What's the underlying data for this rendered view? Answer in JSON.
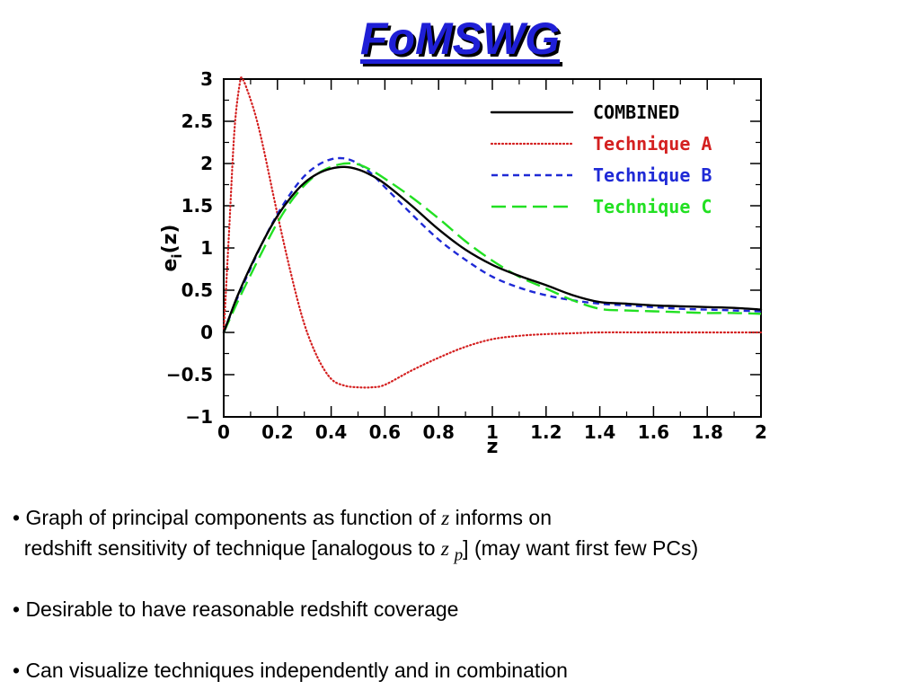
{
  "title": "FoMSWG",
  "chart_data": {
    "type": "line",
    "xlabel": "z",
    "ylabel": "e",
    "ylabel_sub": "i",
    "ylabel_suffix": "(z)",
    "xlim": [
      0,
      2
    ],
    "ylim": [
      -1,
      3
    ],
    "xticks": [
      "0",
      "0.2",
      "0.4",
      "0.6",
      "0.8",
      "1",
      "1.2",
      "1.4",
      "1.6",
      "1.8",
      "2"
    ],
    "yticks": [
      "3",
      "2.5",
      "2",
      "1.5",
      "1",
      "0.5",
      "0",
      "−0.5",
      "−1"
    ],
    "legend_position": "top-right",
    "grid": false,
    "series": [
      {
        "name": "COMBINED",
        "color": "#000000",
        "dash": "solid",
        "x": [
          0,
          0.05,
          0.1,
          0.15,
          0.2,
          0.25,
          0.3,
          0.35,
          0.4,
          0.45,
          0.5,
          0.55,
          0.6,
          0.7,
          0.8,
          0.9,
          1.0,
          1.1,
          1.2,
          1.3,
          1.4,
          1.5,
          1.6,
          1.7,
          1.8,
          1.9,
          2.0
        ],
        "y": [
          0.0,
          0.42,
          0.78,
          1.1,
          1.38,
          1.6,
          1.77,
          1.88,
          1.94,
          1.96,
          1.93,
          1.86,
          1.76,
          1.5,
          1.22,
          0.98,
          0.8,
          0.67,
          0.56,
          0.44,
          0.36,
          0.34,
          0.32,
          0.31,
          0.3,
          0.29,
          0.27
        ]
      },
      {
        "name": "Technique A",
        "color": "#d42020",
        "dash": "dotted",
        "x": [
          0,
          0.02,
          0.04,
          0.06,
          0.07,
          0.09,
          0.12,
          0.15,
          0.2,
          0.25,
          0.3,
          0.35,
          0.4,
          0.45,
          0.5,
          0.55,
          0.6,
          0.7,
          0.8,
          0.9,
          1.0,
          1.1,
          1.2,
          1.3,
          1.4,
          1.6,
          1.8,
          2.0
        ],
        "y": [
          0.0,
          1.2,
          2.4,
          2.95,
          3.0,
          2.85,
          2.55,
          2.15,
          1.4,
          0.7,
          0.1,
          -0.3,
          -0.55,
          -0.63,
          -0.65,
          -0.65,
          -0.62,
          -0.45,
          -0.3,
          -0.17,
          -0.08,
          -0.04,
          -0.02,
          -0.01,
          0.0,
          0.0,
          0.0,
          0.0
        ]
      },
      {
        "name": "Technique B",
        "color": "#1f2ad6",
        "dash": "short-dash",
        "x": [
          0,
          0.05,
          0.1,
          0.15,
          0.2,
          0.25,
          0.3,
          0.35,
          0.4,
          0.45,
          0.5,
          0.55,
          0.6,
          0.7,
          0.8,
          0.9,
          1.0,
          1.1,
          1.2,
          1.3,
          1.4,
          1.5,
          1.6,
          1.7,
          1.8,
          1.9,
          2.0
        ],
        "y": [
          0.0,
          0.4,
          0.76,
          1.1,
          1.4,
          1.65,
          1.85,
          1.98,
          2.05,
          2.06,
          2.0,
          1.88,
          1.72,
          1.4,
          1.1,
          0.86,
          0.66,
          0.53,
          0.44,
          0.38,
          0.34,
          0.32,
          0.3,
          0.28,
          0.27,
          0.26,
          0.25
        ]
      },
      {
        "name": "Technique C",
        "color": "#22e022",
        "dash": "long-dash",
        "x": [
          0,
          0.05,
          0.1,
          0.15,
          0.2,
          0.25,
          0.3,
          0.35,
          0.4,
          0.45,
          0.5,
          0.55,
          0.6,
          0.7,
          0.8,
          0.9,
          1.0,
          1.1,
          1.2,
          1.3,
          1.4,
          1.5,
          1.6,
          1.7,
          1.8,
          1.9,
          2.0
        ],
        "y": [
          0.0,
          0.35,
          0.68,
          1.0,
          1.3,
          1.55,
          1.74,
          1.88,
          1.96,
          2.0,
          1.99,
          1.92,
          1.82,
          1.6,
          1.35,
          1.08,
          0.85,
          0.66,
          0.52,
          0.38,
          0.28,
          0.26,
          0.25,
          0.24,
          0.23,
          0.23,
          0.22
        ]
      }
    ]
  },
  "bullets": {
    "b1_pre": "• Graph of principal components as function of ",
    "b1_math": "z",
    "b1_post": " informs on",
    "b2_pre": "  redshift sensitivity of technique [analogous to ",
    "b2_math": "z ",
    "b2_sub": "p",
    "b2_post": "] (may want first few PCs)",
    "b3": "• Desirable to have reasonable redshift coverage",
    "b4": "• Can visualize techniques independently and in combination"
  }
}
